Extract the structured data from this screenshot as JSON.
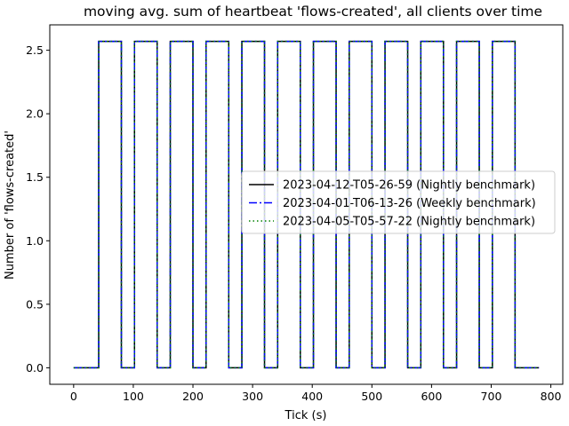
{
  "chart_data": {
    "type": "line",
    "title": "moving avg. sum of heartbeat 'flows-created', all clients over time",
    "xlabel": "Tick (s)",
    "ylabel": "Number of 'flows-created'",
    "xlim": [
      -40,
      820
    ],
    "ylim": [
      -0.13,
      2.7
    ],
    "xticks": [
      0,
      100,
      200,
      300,
      400,
      500,
      600,
      700,
      800
    ],
    "yticks": [
      0.0,
      0.5,
      1.0,
      1.5,
      2.0,
      2.5
    ],
    "xtick_labels": [
      "0",
      "100",
      "200",
      "300",
      "400",
      "500",
      "600",
      "700",
      "800"
    ],
    "ytick_labels": [
      "0.0",
      "0.5",
      "1.0",
      "1.5",
      "2.0",
      "2.5"
    ],
    "grid": false,
    "legend_position": "center-right",
    "series": [
      {
        "name": "2023-04-12-T05-26-59 (Nightly benchmark)",
        "color": "#000000",
        "style": "solid",
        "x": [
          0,
          42,
          42,
          80,
          80,
          102,
          102,
          140,
          140,
          162,
          162,
          200,
          200,
          222,
          222,
          260,
          260,
          282,
          282,
          320,
          320,
          342,
          342,
          380,
          380,
          402,
          402,
          440,
          440,
          462,
          462,
          500,
          500,
          522,
          522,
          560,
          560,
          582,
          582,
          620,
          620,
          642,
          642,
          680,
          680,
          702,
          702,
          740,
          740,
          780
        ],
        "y": [
          0,
          0,
          2.57,
          2.57,
          0,
          0,
          2.57,
          2.57,
          0,
          0,
          2.57,
          2.57,
          0,
          0,
          2.57,
          2.57,
          0,
          0,
          2.57,
          2.57,
          0,
          0,
          2.57,
          2.57,
          0,
          0,
          2.57,
          2.57,
          0,
          0,
          2.57,
          2.57,
          0,
          0,
          2.57,
          2.57,
          0,
          0,
          2.57,
          2.57,
          0,
          0,
          2.57,
          2.57,
          0,
          0,
          2.57,
          2.57,
          0,
          0
        ]
      },
      {
        "name": "2023-04-01-T06-13-26 (Weekly benchmark)",
        "color": "#0000ff",
        "style": "dashdot",
        "x": [
          0,
          42,
          42,
          80,
          80,
          102,
          102,
          140,
          140,
          162,
          162,
          200,
          200,
          222,
          222,
          260,
          260,
          282,
          282,
          320,
          320,
          342,
          342,
          380,
          380,
          402,
          402,
          440,
          440,
          462,
          462,
          500,
          500,
          522,
          522,
          560,
          560,
          582,
          582,
          620,
          620,
          642,
          642,
          680,
          680,
          702,
          702,
          740,
          740,
          780
        ],
        "y": [
          0,
          0,
          2.57,
          2.57,
          0,
          0,
          2.57,
          2.57,
          0,
          0,
          2.57,
          2.57,
          0,
          0,
          2.57,
          2.57,
          0,
          0,
          2.57,
          2.57,
          0,
          0,
          2.57,
          2.57,
          0,
          0,
          2.57,
          2.57,
          0,
          0,
          2.57,
          2.57,
          0,
          0,
          2.57,
          2.57,
          0,
          0,
          2.57,
          2.57,
          0,
          0,
          2.57,
          2.57,
          0,
          0,
          2.57,
          2.57,
          0,
          0
        ]
      },
      {
        "name": "2023-04-05-T05-57-22 (Nightly benchmark)",
        "color": "#008000",
        "style": "dotted",
        "x": [
          0,
          42,
          42,
          80,
          80,
          102,
          102,
          140,
          140,
          162,
          162,
          200,
          200,
          222,
          222,
          260,
          260,
          282,
          282,
          320,
          320,
          342,
          342,
          380,
          380,
          402,
          402,
          440,
          440,
          462,
          462,
          500,
          500,
          522,
          522,
          560,
          560,
          582,
          582,
          620,
          620,
          642,
          642,
          680,
          680,
          702,
          702,
          740,
          740,
          780
        ],
        "y": [
          0,
          0,
          2.57,
          2.57,
          0,
          0,
          2.57,
          2.57,
          0,
          0,
          2.57,
          2.57,
          0,
          0,
          2.57,
          2.57,
          0,
          0,
          2.57,
          2.57,
          0,
          0,
          2.57,
          2.57,
          0,
          0,
          2.57,
          2.57,
          0,
          0,
          2.57,
          2.57,
          0,
          0,
          2.57,
          2.57,
          0,
          0,
          2.57,
          2.57,
          0,
          0,
          2.57,
          2.57,
          0,
          0,
          2.57,
          2.57,
          0,
          0
        ]
      }
    ]
  }
}
